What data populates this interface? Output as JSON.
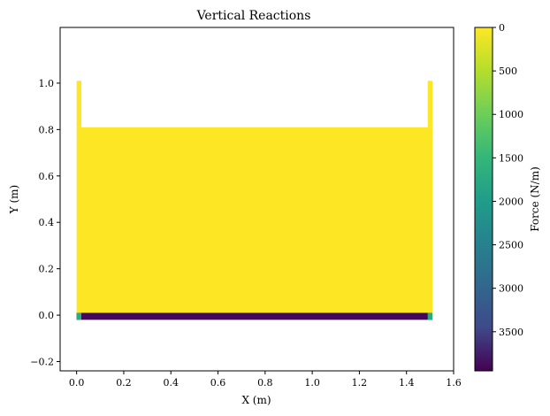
{
  "chart_data": {
    "type": "heatmap",
    "title": "Vertical Reactions",
    "xlabel": "X (m)",
    "ylabel": "Y (m)",
    "xlim": [
      -0.07,
      1.6
    ],
    "ylim": [
      -0.24,
      1.24
    ],
    "xticks": [
      0.0,
      0.2,
      0.4,
      0.6,
      0.8,
      1.0,
      1.2,
      1.4,
      1.6
    ],
    "yticks": [
      -0.2,
      0.0,
      0.2,
      0.4,
      0.6,
      0.8,
      1.0
    ],
    "xtick_labels": [
      "0.0",
      "0.2",
      "0.4",
      "0.6",
      "0.8",
      "1.0",
      "1.2",
      "1.4",
      "1.6"
    ],
    "ytick_labels": [
      "−0.2",
      "0.0",
      "0.2",
      "0.4",
      "0.6",
      "0.8",
      "1.0"
    ],
    "regions": [
      {
        "x": [
          0.0,
          1.51
        ],
        "y": [
          -0.01,
          0.81
        ],
        "force": 0
      },
      {
        "x": [
          0.0,
          0.02
        ],
        "y": [
          0.81,
          1.01
        ],
        "force": 0
      },
      {
        "x": [
          1.49,
          1.51
        ],
        "y": [
          0.81,
          1.01
        ],
        "force": 0
      },
      {
        "x": [
          0.0,
          1.51
        ],
        "y": [
          -0.02,
          0.01
        ],
        "force": 3900
      },
      {
        "x": [
          0.0,
          0.02
        ],
        "y": [
          -0.02,
          0.01
        ],
        "force": 1700
      },
      {
        "x": [
          1.49,
          1.51
        ],
        "y": [
          -0.02,
          0.01
        ],
        "force": 1700
      }
    ],
    "colorbar": {
      "label": "Force (N/m)",
      "colormap": "viridis",
      "range": [
        0,
        3950
      ],
      "reversed": true,
      "ticks": [
        0,
        500,
        1000,
        1500,
        2000,
        2500,
        3000,
        3500
      ],
      "tick_labels": [
        "0",
        "500",
        "1000",
        "1500",
        "2000",
        "2500",
        "3000",
        "3500"
      ]
    }
  }
}
